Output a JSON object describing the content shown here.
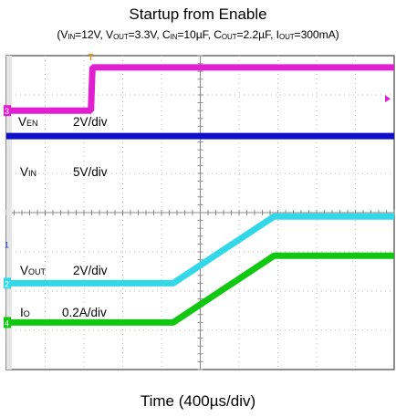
{
  "title": "Startup from Enable",
  "conditions": [
    {
      "name": "V",
      "sub": "IN",
      "value": "=12V, "
    },
    {
      "name": "V",
      "sub": "OUT",
      "value": "=3.3V, "
    },
    {
      "name": "C",
      "sub": "IN",
      "value": "=10µF, "
    },
    {
      "name": "C",
      "sub": "OUT",
      "value": "=2.2µF, "
    },
    {
      "name": "I",
      "sub": "OUT",
      "value": "=300mA)"
    }
  ],
  "xlabel": "Time (400µs/div)",
  "colors": {
    "background": "#ffffff",
    "grid": "#b9b9b9",
    "frame": "#444444",
    "EN": "#e020d0",
    "VIN": "#1010c8",
    "VOUT": "#33d8e8",
    "IO": "#10c810",
    "trigger": "#e89a10"
  },
  "chart_data": {
    "type": "line",
    "title": "Startup from Enable",
    "xlabel": "Time (400µs/div)",
    "ylabel": "",
    "x_divisions": 10,
    "y_divisions": 8,
    "grid": true,
    "x_unit": "div",
    "y_unit": "div",
    "series": [
      {
        "name": "V_EN",
        "label_name": "V",
        "label_sub": "EN",
        "scale": "2V/div",
        "channel": "3",
        "x": [
          0,
          2.18,
          2.22,
          10
        ],
        "y": [
          6.6,
          6.6,
          7.7,
          7.7
        ]
      },
      {
        "name": "V_IN",
        "label_name": "V",
        "label_sub": "IN",
        "scale": "5V/div",
        "channel": "",
        "x": [
          0,
          10
        ],
        "y": [
          5.95,
          5.95
        ]
      },
      {
        "name": "V_OUT",
        "label_name": "V",
        "label_sub": "OUT",
        "scale": "2V/div",
        "channel": "2",
        "x": [
          0,
          4.3,
          6.9,
          10
        ],
        "y": [
          2.2,
          2.2,
          3.9,
          3.9
        ]
      },
      {
        "name": "I_O",
        "label_name": "I",
        "label_sub": "O",
        "scale": "0.2A/div",
        "channel": "4",
        "x": [
          0,
          4.3,
          6.9,
          10
        ],
        "y": [
          1.2,
          1.2,
          2.9,
          2.9
        ]
      }
    ],
    "markers": {
      "channel_1_ref_y": 3.2,
      "trigger_x": 2.2,
      "right_marker_y": 6.9
    }
  }
}
